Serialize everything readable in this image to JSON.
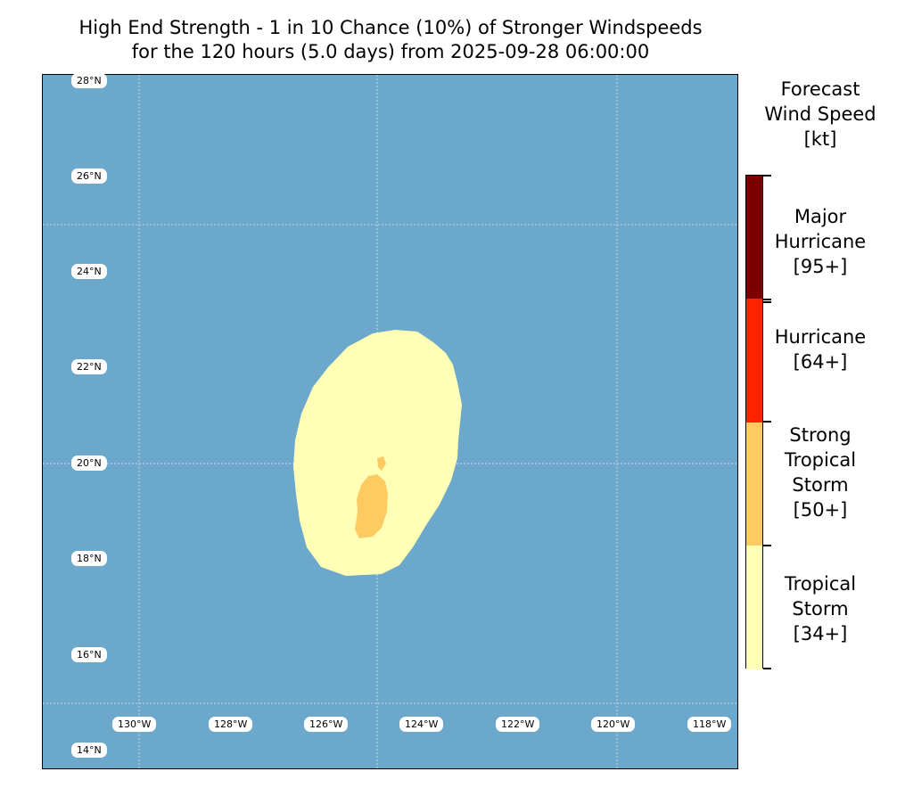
{
  "title": {
    "line1": "High End Strength - 1 in 10 Chance (10%) of Stronger Windspeeds",
    "line2": "for the 120 hours (5.0 days) from 2025-09-28 06:00:00"
  },
  "map": {
    "lat_labels": [
      "28°N",
      "26°N",
      "24°N",
      "22°N",
      "20°N",
      "18°N",
      "16°N",
      "14°N"
    ],
    "lon_labels": [
      "130°W",
      "128°W",
      "126°W",
      "124°W",
      "122°W",
      "120°W",
      "118°W"
    ],
    "ocean_color": "#6ca7cc",
    "gridline_color": "#c8d8e4"
  },
  "colorbar": {
    "title_line1": "Forecast",
    "title_line2": "Wind Speed",
    "title_line3": "[kt]",
    "categories": [
      {
        "line1": "Major",
        "line2": "Hurricane",
        "line3": "[95+]",
        "color": "#7a0000"
      },
      {
        "line1": "Hurricane",
        "line2": "[64+]",
        "color": "#ff2200"
      },
      {
        "line1": "Strong",
        "line2": "Tropical",
        "line3": "Storm",
        "line4": "[50+]",
        "color": "#fecb63"
      },
      {
        "line1": "Tropical",
        "line2": "Storm",
        "line3": "[34+]",
        "color": "#ffffb5"
      }
    ]
  },
  "wind_fields": [
    {
      "category": "Tropical Storm [34+]",
      "color": "#ffffb5"
    },
    {
      "category": "Strong Tropical Storm [50+]",
      "color": "#fecb63"
    }
  ]
}
